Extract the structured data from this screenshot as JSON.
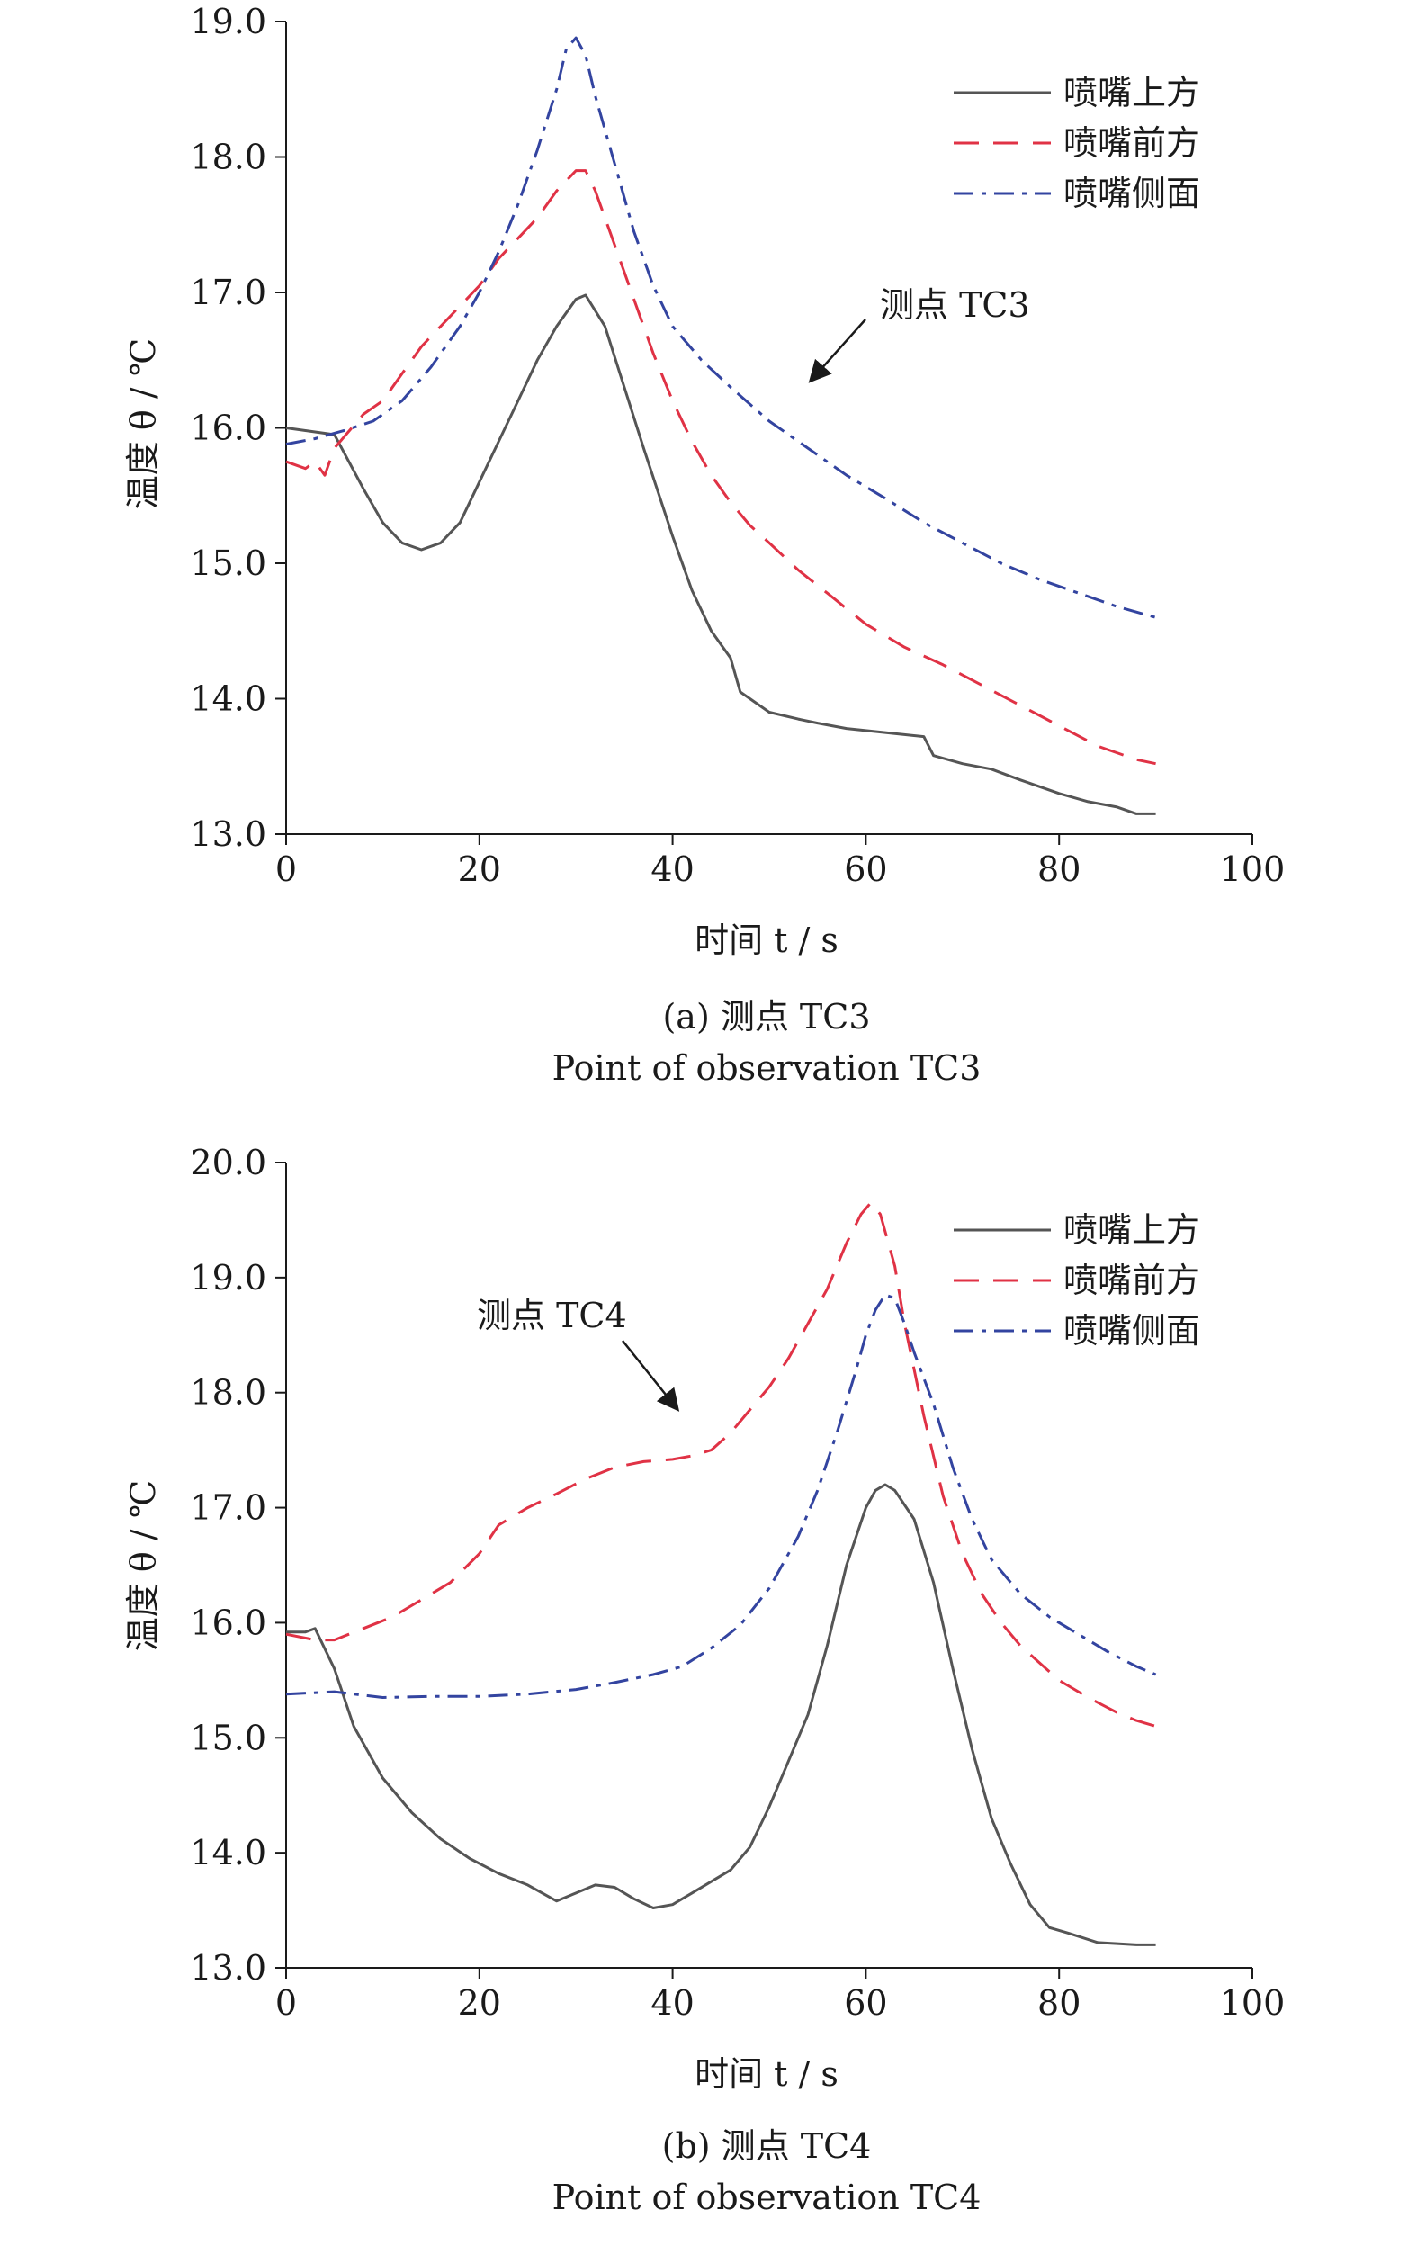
{
  "chart_data": [
    {
      "type": "line",
      "caption": "(a) 测点 TC3",
      "caption_en": "Point of observation TC3",
      "annotation": "测点 TC3",
      "xlabel": "时间 t / s",
      "ylabel": "温度 θ / ℃",
      "xlim": [
        0,
        100
      ],
      "ylim": [
        13.0,
        19.0
      ],
      "xticks": [
        "0",
        "20",
        "40",
        "60",
        "80",
        "100"
      ],
      "yticks": [
        "13.0",
        "14.0",
        "15.0",
        "16.0",
        "17.0",
        "18.0",
        "19.0"
      ],
      "legend_position": "top-right",
      "grid": false,
      "series": [
        {
          "name": "喷嘴上方",
          "color": "#555555",
          "dash": "solid",
          "x": [
            0,
            5,
            8,
            10,
            12,
            14,
            16,
            18,
            20,
            22,
            24,
            26,
            28,
            30,
            31,
            33,
            35,
            37,
            40,
            42,
            44,
            46,
            47,
            50,
            53,
            55,
            58,
            62,
            66,
            67,
            70,
            73,
            76,
            80,
            83,
            86,
            88,
            90
          ],
          "y": [
            16.0,
            15.95,
            15.55,
            15.3,
            15.15,
            15.1,
            15.15,
            15.3,
            15.6,
            15.9,
            16.2,
            16.5,
            16.75,
            16.95,
            16.98,
            16.75,
            16.3,
            15.85,
            15.2,
            14.8,
            14.5,
            14.3,
            14.05,
            13.9,
            13.85,
            13.82,
            13.78,
            13.75,
            13.72,
            13.58,
            13.52,
            13.48,
            13.4,
            13.3,
            13.24,
            13.2,
            13.15,
            13.15
          ]
        },
        {
          "name": "喷嘴前方",
          "color": "#e03245",
          "dash": "28,16",
          "x": [
            0,
            2,
            3,
            4,
            5,
            8,
            10,
            12,
            14,
            16,
            18,
            20,
            22,
            24,
            26,
            28,
            30,
            31,
            32,
            34,
            36,
            38,
            40,
            42,
            44,
            46,
            48,
            50,
            53,
            56,
            60,
            64,
            68,
            72,
            76,
            80,
            84,
            88,
            90
          ],
          "y": [
            15.75,
            15.7,
            15.75,
            15.65,
            15.85,
            16.1,
            16.2,
            16.4,
            16.6,
            16.75,
            16.9,
            17.05,
            17.25,
            17.4,
            17.55,
            17.75,
            17.9,
            17.9,
            17.75,
            17.35,
            16.95,
            16.55,
            16.2,
            15.9,
            15.65,
            15.45,
            15.28,
            15.15,
            14.95,
            14.78,
            14.55,
            14.38,
            14.25,
            14.1,
            13.95,
            13.8,
            13.65,
            13.55,
            13.52
          ]
        },
        {
          "name": "喷嘴侧面",
          "color": "#3344a0",
          "dash": "22,9,5,9",
          "x": [
            0,
            3,
            6,
            9,
            12,
            15,
            18,
            20,
            22,
            24,
            26,
            28,
            29,
            30,
            31,
            32,
            34,
            36,
            38,
            40,
            43,
            46,
            50,
            54,
            58,
            62,
            66,
            70,
            74,
            78,
            82,
            86,
            90
          ],
          "y": [
            15.88,
            15.92,
            15.98,
            16.05,
            16.2,
            16.45,
            16.75,
            17.0,
            17.3,
            17.65,
            18.05,
            18.5,
            18.8,
            18.88,
            18.75,
            18.45,
            17.95,
            17.45,
            17.05,
            16.75,
            16.5,
            16.3,
            16.05,
            15.85,
            15.65,
            15.48,
            15.3,
            15.15,
            15.0,
            14.88,
            14.78,
            14.68,
            14.6
          ]
        }
      ]
    },
    {
      "type": "line",
      "caption": "(b) 测点 TC4",
      "caption_en": "Point of observation TC4",
      "annotation": "测点 TC4",
      "xlabel": "时间 t / s",
      "ylabel": "温度 θ / ℃",
      "xlim": [
        0,
        100
      ],
      "ylim": [
        13.0,
        20.0
      ],
      "xticks": [
        "0",
        "20",
        "40",
        "60",
        "80",
        "100"
      ],
      "yticks": [
        "13.0",
        "14.0",
        "15.0",
        "16.0",
        "17.0",
        "18.0",
        "19.0",
        "20.0"
      ],
      "legend_position": "top-right",
      "grid": false,
      "series": [
        {
          "name": "喷嘴上方",
          "color": "#555555",
          "dash": "solid",
          "x": [
            0,
            2,
            3,
            5,
            7,
            10,
            13,
            16,
            19,
            22,
            25,
            28,
            30,
            32,
            34,
            36,
            38,
            40,
            42,
            44,
            46,
            48,
            50,
            52,
            54,
            56,
            58,
            60,
            61,
            62,
            63,
            65,
            67,
            69,
            71,
            73,
            75,
            77,
            79,
            81,
            84,
            88,
            90
          ],
          "y": [
            15.92,
            15.92,
            15.95,
            15.6,
            15.1,
            14.65,
            14.35,
            14.12,
            13.95,
            13.82,
            13.72,
            13.58,
            13.65,
            13.72,
            13.7,
            13.6,
            13.52,
            13.55,
            13.65,
            13.75,
            13.85,
            14.05,
            14.4,
            14.8,
            15.2,
            15.8,
            16.5,
            17.0,
            17.15,
            17.2,
            17.15,
            16.9,
            16.35,
            15.6,
            14.9,
            14.3,
            13.9,
            13.55,
            13.35,
            13.3,
            13.22,
            13.2,
            13.2
          ]
        },
        {
          "name": "喷嘴前方",
          "color": "#e03245",
          "dash": "28,16",
          "x": [
            0,
            3,
            5,
            8,
            11,
            14,
            17,
            20,
            22,
            25,
            28,
            31,
            34,
            37,
            40,
            42,
            44,
            46,
            48,
            50,
            52,
            54,
            56,
            58,
            59.5,
            60.5,
            61.5,
            63,
            64,
            66,
            68,
            70,
            72,
            74,
            76,
            78,
            80,
            83,
            86,
            88,
            90
          ],
          "y": [
            15.9,
            15.85,
            15.85,
            15.95,
            16.05,
            16.2,
            16.35,
            16.6,
            16.85,
            17.0,
            17.12,
            17.25,
            17.35,
            17.4,
            17.42,
            17.45,
            17.5,
            17.65,
            17.85,
            18.05,
            18.3,
            18.6,
            18.9,
            19.3,
            19.55,
            19.65,
            19.55,
            19.1,
            18.6,
            17.8,
            17.1,
            16.6,
            16.25,
            16.0,
            15.8,
            15.65,
            15.5,
            15.35,
            15.22,
            15.15,
            15.1
          ]
        },
        {
          "name": "喷嘴侧面",
          "color": "#3344a0",
          "dash": "22,9,5,9",
          "x": [
            0,
            5,
            10,
            15,
            20,
            25,
            30,
            34,
            38,
            41,
            44,
            47,
            50,
            53,
            55,
            57,
            59,
            60,
            61,
            62,
            63,
            64,
            65,
            67,
            69,
            71,
            73,
            76,
            79,
            82,
            85,
            88,
            90
          ],
          "y": [
            15.38,
            15.4,
            15.35,
            15.36,
            15.36,
            15.38,
            15.42,
            15.48,
            15.55,
            15.62,
            15.78,
            15.98,
            16.3,
            16.75,
            17.15,
            17.65,
            18.2,
            18.5,
            18.72,
            18.85,
            18.82,
            18.6,
            18.35,
            17.9,
            17.35,
            16.9,
            16.55,
            16.25,
            16.05,
            15.9,
            15.75,
            15.62,
            15.55
          ]
        }
      ]
    }
  ]
}
